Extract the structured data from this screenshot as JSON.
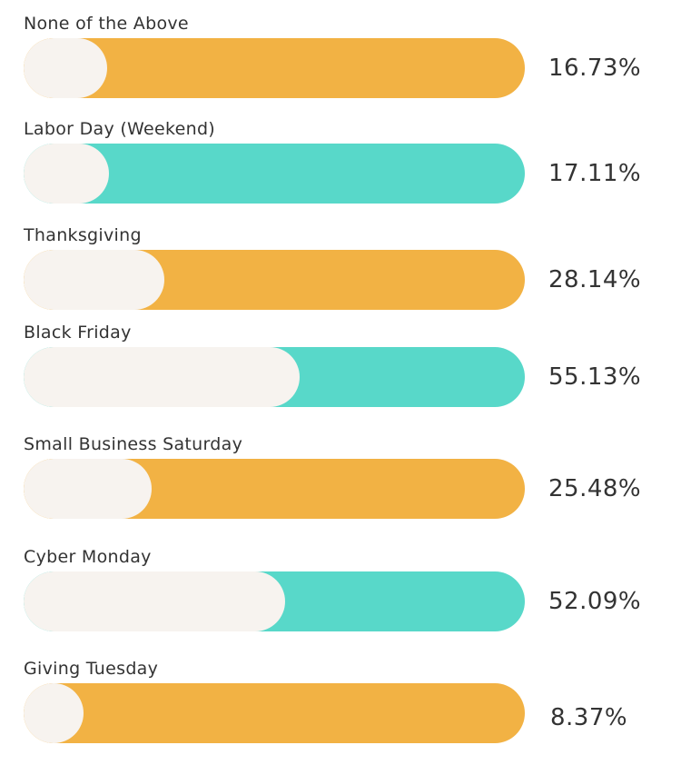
{
  "chart_data": {
    "type": "bar",
    "orientation": "horizontal",
    "xlim": [
      0,
      100
    ],
    "grid": false,
    "categories": [
      "None of the Above",
      "Labor Day (Weekend)",
      "Thanksgiving",
      "Black Friday",
      "Small Business Saturday",
      "Cyber Monday",
      "Giving Tuesday"
    ],
    "values": [
      16.73,
      17.11,
      28.14,
      55.13,
      25.48,
      52.09,
      8.37
    ],
    "labels": [
      "16.73%",
      "17.11%",
      "28.14%",
      "55.13%",
      "25.48%",
      "52.09%",
      "8.37%"
    ],
    "colors": [
      "#f2b244",
      "#58d8c9",
      "#f2b244",
      "#58d8c9",
      "#f2b244",
      "#58d8c9",
      "#f2b244"
    ],
    "fill_color": "#f7f3ef"
  }
}
